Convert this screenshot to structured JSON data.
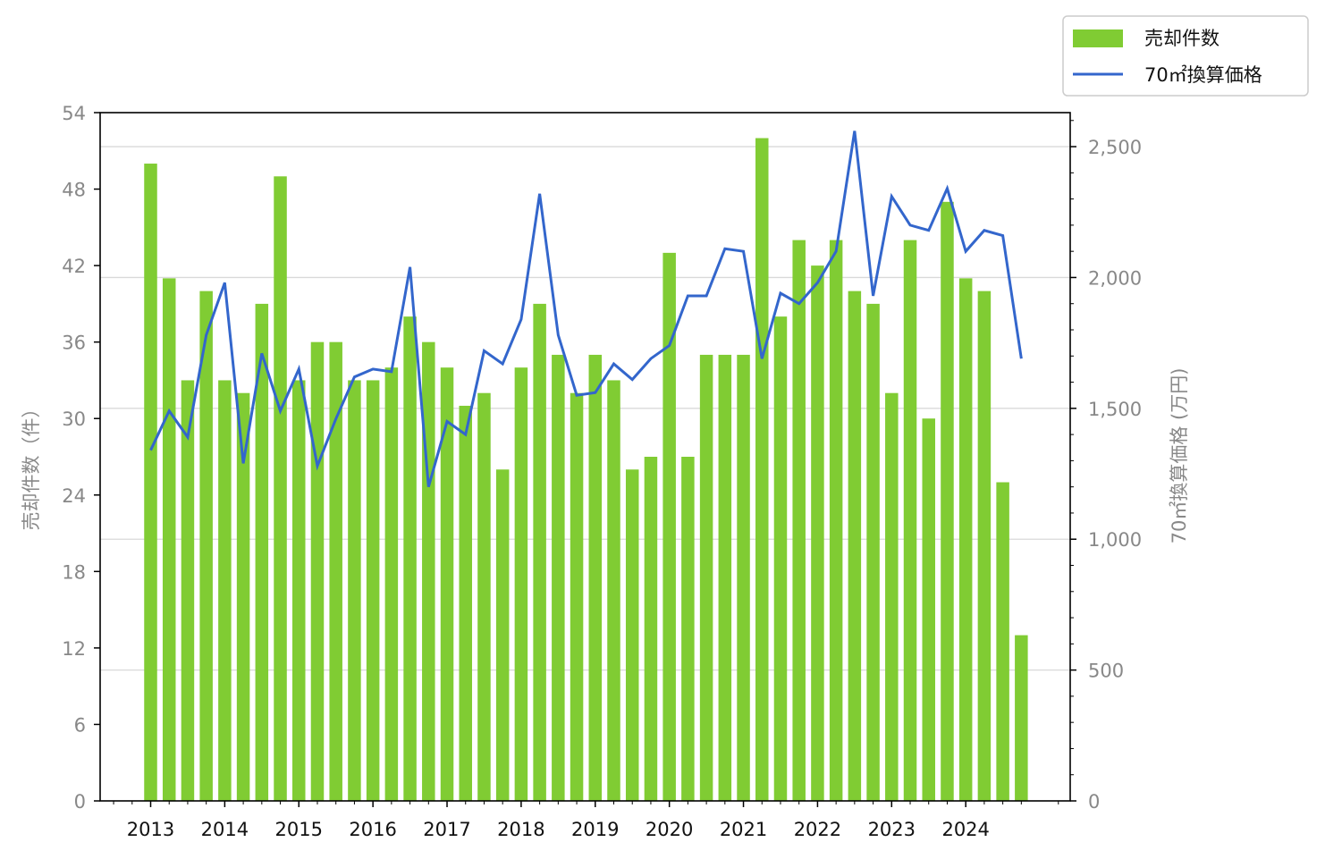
{
  "chart_data": {
    "type": "bar",
    "colors": {
      "bars": "#80cc33",
      "line": "#3366cc",
      "grid": "#d9d9d9",
      "axis_text": "#888888"
    },
    "grid": true,
    "legend_position": "top-right",
    "ylabel_left": "売却件数（件）",
    "ylabel_right": "70㎡換算価格 (万円)",
    "ylim_left": [
      0,
      54
    ],
    "ylim_right": [
      0,
      2630
    ],
    "yticks_left": [
      "0",
      "6",
      "12",
      "18",
      "24",
      "30",
      "36",
      "42",
      "48",
      "54"
    ],
    "yticks_right": [
      "0",
      "500",
      "1,000",
      "1,500",
      "2,000",
      "2,500"
    ],
    "year_labels": [
      "2013",
      "2014",
      "2015",
      "2016",
      "2017",
      "2018",
      "2019",
      "2020",
      "2021",
      "2022",
      "2023",
      "2024"
    ],
    "series": [
      {
        "name": "売却件数",
        "type": "bar",
        "axis": "left",
        "values": [
          50,
          41,
          33,
          40,
          33,
          32,
          39,
          49,
          33,
          36,
          36,
          33,
          33,
          34,
          38,
          36,
          34,
          31,
          32,
          26,
          34,
          39,
          35,
          32,
          35,
          33,
          26,
          27,
          43,
          27,
          35,
          35,
          35,
          52,
          38,
          44,
          42,
          44,
          40,
          39,
          32,
          44,
          30,
          47,
          41,
          40,
          25,
          13
        ]
      },
      {
        "name": "70㎡換算価格",
        "type": "line",
        "axis": "right",
        "values": [
          1340,
          1490,
          1390,
          1780,
          1980,
          1290,
          1710,
          1490,
          1650,
          1280,
          1460,
          1620,
          1650,
          1640,
          2040,
          1200,
          1450,
          1400,
          1720,
          1670,
          1840,
          2320,
          1780,
          1550,
          1560,
          1670,
          1610,
          1690,
          1740,
          1930,
          1930,
          2110,
          2100,
          1690,
          1940,
          1900,
          1980,
          2100,
          2560,
          1930,
          2310,
          2200,
          2180,
          2340,
          2100,
          2180,
          2160,
          1690
        ]
      }
    ]
  }
}
